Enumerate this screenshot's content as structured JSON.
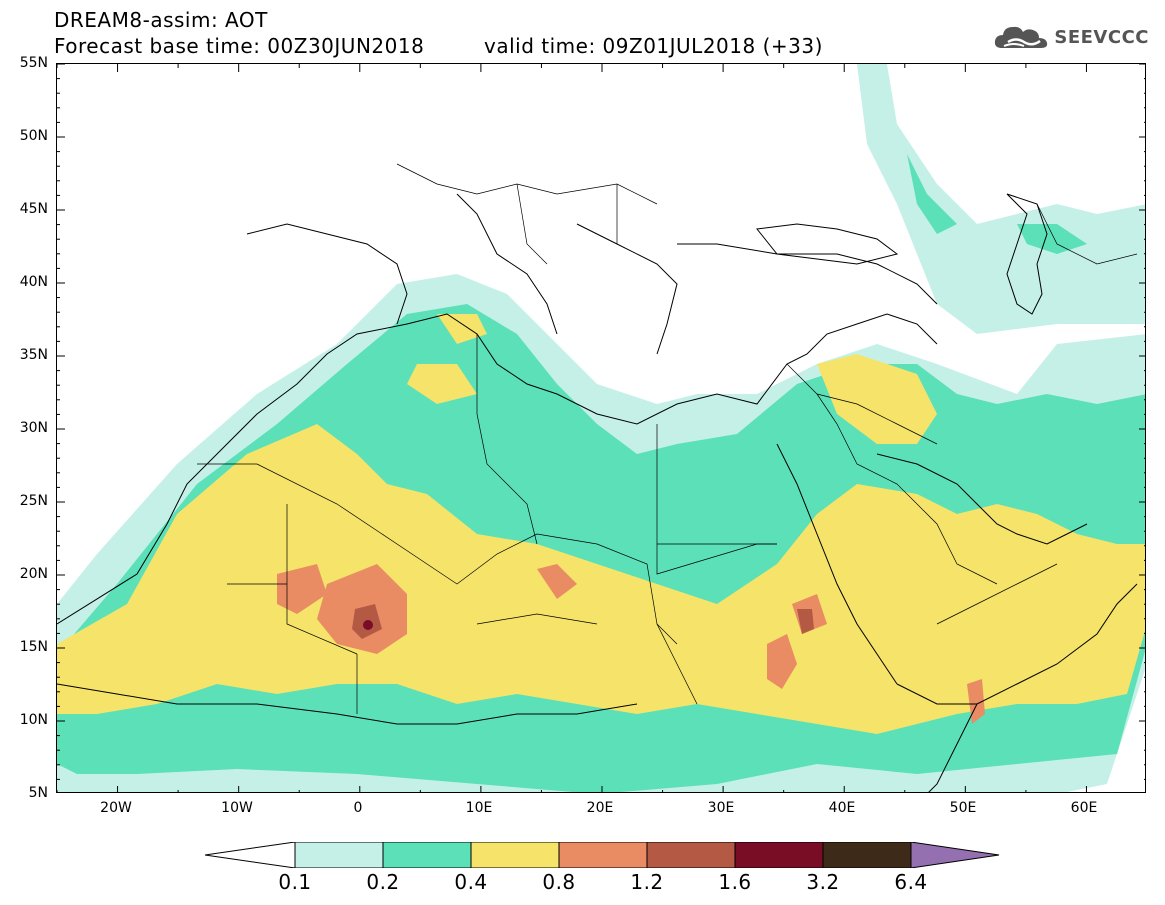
{
  "header": {
    "title": "DREAM8-assim: AOT",
    "base_time": "Forecast base time: 00Z30JUN2018",
    "valid_time": "valid time: 09Z01JUL2018 (+33)"
  },
  "logo": {
    "text": "SEEVCCC",
    "icon": "cloud-icon",
    "color": "#555555"
  },
  "map": {
    "projection": "lat-lon",
    "lon_range": [
      -25,
      65
    ],
    "lat_range": [
      5,
      55
    ],
    "lat_ticks": [
      "5N",
      "10N",
      "15N",
      "20N",
      "25N",
      "30N",
      "35N",
      "40N",
      "45N",
      "50N",
      "55N"
    ],
    "lon_ticks": [
      "20W",
      "10W",
      "0",
      "10E",
      "20E",
      "30E",
      "40E",
      "50E",
      "60E"
    ]
  },
  "legend": {
    "labels": [
      "0.1",
      "0.2",
      "0.4",
      "0.8",
      "1.2",
      "1.6",
      "3.2",
      "6.4"
    ],
    "colors": [
      "#ffffff",
      "#c5f0e8",
      "#5be0b8",
      "#f5e36a",
      "#e98c64",
      "#b45944",
      "#7a0d26",
      "#3d2a18",
      "#9470b0"
    ]
  }
}
